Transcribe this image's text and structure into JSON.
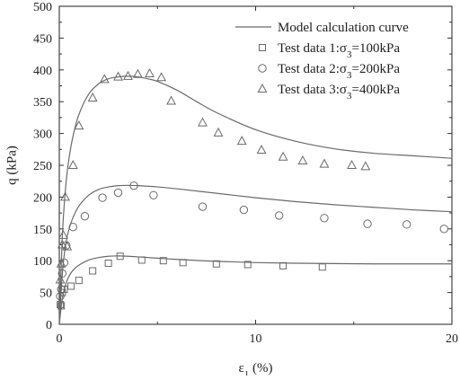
{
  "chart_data": {
    "type": "scatter",
    "xlabel": "ε1 (%)",
    "ylabel": "q (kPa)",
    "xlim": [
      0,
      20
    ],
    "ylim": [
      0,
      500
    ],
    "xticks": [
      "0",
      "10",
      "20"
    ],
    "yticks": [
      "0",
      "50",
      "100",
      "150",
      "200",
      "250",
      "300",
      "350",
      "400",
      "450",
      "500"
    ],
    "grid": false,
    "legend_position": "top-right",
    "legend": [
      {
        "label": "Model calculation curve",
        "symbol": "line"
      },
      {
        "label": "Test data 1:σ3=100kPa",
        "symbol": "square"
      },
      {
        "label": "Test data 2:σ3=200kPa",
        "symbol": "circle"
      },
      {
        "label": "Test data 3:σ3=400kPa",
        "symbol": "triangle"
      }
    ],
    "model_curves": [
      {
        "x": [
          0,
          0.1,
          0.2,
          0.35,
          0.5,
          0.7,
          1.0,
          1.5,
          2.0,
          2.5,
          3.0,
          3.5,
          4.0,
          5.0,
          6.0,
          8.0,
          10.0,
          12.0,
          14.0,
          16.0,
          18.0,
          20.0
        ],
        "y": [
          0,
          28,
          48,
          65,
          76,
          85,
          93,
          101,
          105,
          107,
          107.5,
          107,
          106,
          104,
          102,
          99,
          97,
          96,
          95.5,
          95,
          95,
          95
        ]
      },
      {
        "x": [
          0,
          0.1,
          0.2,
          0.35,
          0.5,
          0.7,
          1.0,
          1.5,
          2.0,
          2.5,
          3.0,
          3.5,
          4.0,
          5.0,
          6.0,
          8.0,
          10.0,
          12.0,
          14.0,
          16.0,
          18.0,
          20.0
        ],
        "y": [
          0,
          55,
          95,
          130,
          150,
          168,
          186,
          203,
          212,
          216,
          218,
          218.5,
          218,
          216,
          213,
          206,
          199,
          193,
          188,
          184,
          180,
          177
        ]
      },
      {
        "x": [
          0,
          0.1,
          0.2,
          0.35,
          0.5,
          0.7,
          1.0,
          1.5,
          2.0,
          2.5,
          3.0,
          3.5,
          4.0,
          4.5,
          5.0,
          6.0,
          7.0,
          8.0,
          10.0,
          12.0,
          14.0,
          16.0,
          18.0,
          20.0
        ],
        "y": [
          0,
          95,
          165,
          225,
          262,
          296,
          330,
          362,
          378,
          386,
          389,
          390,
          389,
          386,
          382,
          368,
          350,
          333,
          306,
          288,
          276,
          269,
          265,
          261
        ]
      }
    ],
    "series": [
      {
        "marker": "square",
        "x": [
          0.05,
          0.1,
          0.15,
          0.25,
          0.6,
          1.0,
          1.7,
          2.5,
          3.1,
          4.2,
          5.3,
          6.3,
          8.0,
          9.6,
          11.4,
          13.4
        ],
        "y": [
          31,
          29,
          50,
          55,
          60,
          69,
          84,
          96,
          107,
          101,
          100,
          97,
          95,
          94,
          92,
          90
        ]
      },
      {
        "marker": "circle",
        "x": [
          0.05,
          0.1,
          0.15,
          0.25,
          0.35,
          0.7,
          1.3,
          2.2,
          3.0,
          3.8,
          4.8,
          7.3,
          9.4,
          11.2,
          13.5,
          15.7,
          17.7,
          19.6
        ],
        "y": [
          44,
          55,
          80,
          97,
          124,
          153,
          170,
          199,
          207,
          218,
          203,
          185,
          180,
          171,
          167,
          158,
          157,
          150
        ]
      },
      {
        "marker": "triangle",
        "x": [
          0.05,
          0.1,
          0.15,
          0.2,
          0.3,
          0.4,
          0.7,
          1.0,
          1.7,
          2.3,
          3.0,
          3.5,
          4.0,
          4.6,
          5.2,
          5.7,
          7.3,
          8.1,
          9.3,
          10.3,
          11.4,
          12.4,
          13.5,
          14.9,
          15.6
        ],
        "y": [
          70,
          95,
          125,
          140,
          200,
          122,
          250,
          312,
          356,
          385,
          389,
          390,
          393,
          394,
          388,
          351,
          317,
          301,
          288,
          274,
          263,
          257,
          252,
          250,
          248
        ]
      }
    ]
  }
}
